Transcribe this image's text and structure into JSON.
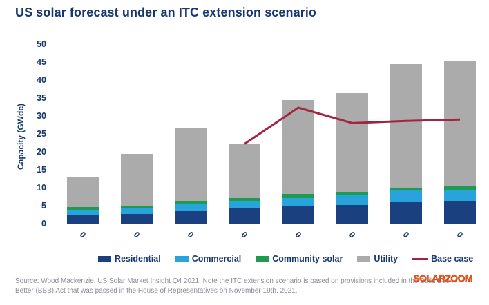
{
  "title": "US solar forecast under an ITC extension scenario",
  "watermark": "SOLARZOOM",
  "source": {
    "line1": "Source: Wood Mackenzie, US Solar Market Insight Q4 2021. Note the ITC extension scenario is based on provisions included in the Build Back",
    "line2": "Better (BBB) Act that was passed in the House of Representatives on November 19th, 2021."
  },
  "colors": {
    "title_text": "#17386E",
    "axis_text": "#17386E",
    "source_text": "#8C8C96",
    "watermark": "#E8581C"
  },
  "chart_data": {
    "type": "bar",
    "stacked": true,
    "title": "US solar forecast under an ITC extension scenario",
    "xlabel": "",
    "ylabel": "Capacity (GWdc)",
    "ylim": [
      0,
      50
    ],
    "yticks": [
      0,
      5,
      10,
      15,
      20,
      25,
      30,
      35,
      40,
      45,
      50
    ],
    "grid": false,
    "legend_position": "bottom",
    "categories": [
      "0",
      "0",
      "0",
      "0",
      "0",
      "0",
      "0",
      "0"
    ],
    "series": [
      {
        "name": "Residential",
        "color": "#1B4080",
        "values": [
          2.5,
          2.9,
          3.7,
          4.4,
          5.2,
          5.4,
          6.2,
          6.5
        ]
      },
      {
        "name": "Commercial",
        "color": "#29A3DC",
        "values": [
          1.4,
          1.6,
          1.8,
          2.0,
          2.2,
          2.7,
          3.2,
          3.2
        ]
      },
      {
        "name": "Community solar",
        "color": "#1E9B4E",
        "values": [
          1.0,
          0.7,
          0.9,
          1.0,
          1.0,
          1.0,
          0.8,
          1.0
        ]
      },
      {
        "name": "Utility",
        "color": "#ABABAB",
        "values": [
          8.2,
          14.5,
          20.4,
          15.0,
          26.2,
          27.5,
          34.4,
          34.8
        ]
      }
    ],
    "stack_totals": [
      13.1,
      19.7,
      26.8,
      22.4,
      34.6,
      36.6,
      44.6,
      45.5
    ],
    "line_series": {
      "name": "Base case",
      "color": "#A32440",
      "values": [
        null,
        null,
        null,
        22.4,
        32.5,
        28.2,
        28.8,
        29.2
      ]
    }
  }
}
